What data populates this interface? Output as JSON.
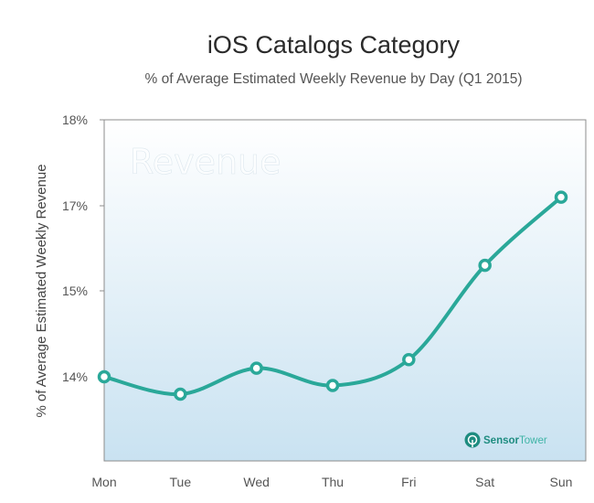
{
  "chart_data": {
    "type": "line",
    "title": "iOS Catalogs Category",
    "subtitle": "% of Average Estimated Weekly Revenue by Day (Q1 2015)",
    "xlabel": "",
    "ylabel": "% of  Average Estimated Weekly Revenue",
    "categories": [
      "Mon",
      "Tue",
      "Wed",
      "Thu",
      "Fri",
      "Sat",
      "Sun"
    ],
    "y_tick_labels": [
      "18%",
      "17%",
      "15%",
      "14%"
    ],
    "series": [
      {
        "values": [
          14.0,
          13.8,
          14.1,
          13.9,
          14.2,
          15.6,
          17.1
        ]
      }
    ],
    "grid": false,
    "line_color": "#2aa899",
    "watermark": "Revenue",
    "brand": {
      "part1": "Sensor",
      "part2": "Tower",
      "color1": "#1e8c80",
      "color2": "#3fb4a6"
    }
  }
}
